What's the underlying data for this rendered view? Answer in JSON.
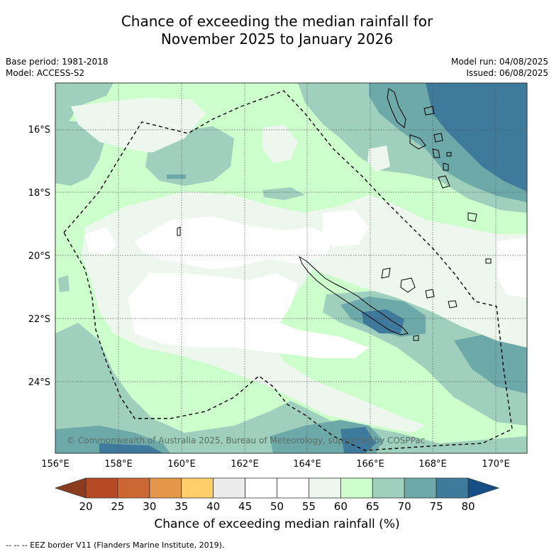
{
  "title": {
    "line1": "Chance of exceeding the median rainfall for",
    "line2": "November 2025 to January 2026"
  },
  "meta": {
    "base_period": "Base period: 1981-2018",
    "model": "Model: ACCESS-S2",
    "model_run": "Model run: 04/08/2025",
    "issued": "Issued: 06/08/2025"
  },
  "map": {
    "lon_range": [
      156,
      171
    ],
    "lat_range": [
      -26.2,
      -14.5
    ],
    "lat_ticks": [
      "16°S",
      "18°S",
      "20°S",
      "22°S",
      "24°S"
    ],
    "lon_ticks": [
      "156°E",
      "158°E",
      "160°E",
      "162°E",
      "164°E",
      "166°E",
      "168°E",
      "170°E"
    ],
    "credit": "© Commonwealth of Australia 2025, Bureau of Meteorology, supported by COSPPac"
  },
  "colorbar": {
    "ticks": [
      "20",
      "25",
      "30",
      "35",
      "40",
      "45",
      "50",
      "55",
      "60",
      "65",
      "70",
      "75",
      "80"
    ],
    "colors": [
      "#b54a25",
      "#cc6633",
      "#e5974a",
      "#ffd06a",
      "#ececec",
      "#ffffff",
      "#ffffff",
      "#eef7ee",
      "#ccffcc",
      "#9fd0bd",
      "#6ea9a9",
      "#3e7a9b"
    ],
    "low_color": "#8c3c1e",
    "high_color": "#164f86",
    "label": "Chance of exceeding median rainfall (%)"
  },
  "legend": {
    "eez": "--  --  -- EEZ border V11 (Flanders Marine Institute, 2019)."
  }
}
